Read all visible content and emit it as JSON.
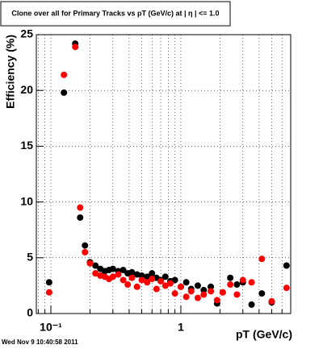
{
  "chart_data": {
    "type": "scatter",
    "title": "Clone  over all for Primary Tracks vs pT (GeV/c) at |  η | <= 1.0",
    "x_label": "pT (GeV/c)",
    "y_label": "Efficiency (%)",
    "footer": "Wed Nov  9 10:40:58 2011",
    "x": [
      0.097,
      0.126,
      0.154,
      0.168,
      0.183,
      0.2,
      0.22,
      0.24,
      0.26,
      0.28,
      0.3,
      0.33,
      0.36,
      0.39,
      0.42,
      0.46,
      0.5,
      0.55,
      0.6,
      0.65,
      0.7,
      0.76,
      0.83,
      0.9,
      1.0,
      1.1,
      1.2,
      1.35,
      1.5,
      1.7,
      1.9,
      2.1,
      2.4,
      2.7,
      3.0,
      3.5,
      4.2,
      5.0,
      6.5
    ],
    "series": [
      {
        "name": "black",
        "color": "#000000",
        "values": [
          2.8,
          19.8,
          24.2,
          8.6,
          6.1,
          4.6,
          4.3,
          4.0,
          3.8,
          3.9,
          4.0,
          3.8,
          3.9,
          3.6,
          3.7,
          3.5,
          3.4,
          3.3,
          3.6,
          3.2,
          3.0,
          3.3,
          2.9,
          3.0,
          2.4,
          2.8,
          2.2,
          2.5,
          2.1,
          2.4,
          0.9,
          1.9,
          3.2,
          2.6,
          2.8,
          0.8,
          1.8,
          1.0,
          4.3
        ]
      },
      {
        "name": "red",
        "color": "#ff0000",
        "values": [
          1.9,
          21.4,
          23.9,
          9.5,
          5.5,
          4.5,
          3.6,
          3.4,
          3.3,
          3.1,
          3.3,
          3.5,
          3.0,
          2.6,
          3.2,
          2.4,
          3.0,
          2.8,
          3.1,
          2.2,
          2.9,
          2.5,
          2.7,
          1.8,
          2.4,
          1.5,
          2.0,
          1.4,
          1.7,
          2.0,
          1.2,
          1.9,
          2.6,
          1.7,
          3.0,
          2.8,
          4.9,
          1.1,
          2.3
        ]
      }
    ],
    "xlog": true,
    "xlim": [
      0.0773,
      7.0
    ],
    "ylim": [
      0,
      25
    ],
    "xticks": [
      {
        "value": 0.1,
        "label": "10⁻¹"
      },
      1
    ],
    "xminorticks": [
      0.08,
      0.09,
      0.2,
      0.3,
      0.4,
      0.5,
      0.6,
      0.7,
      0.8,
      0.9,
      2,
      3,
      4,
      5,
      6,
      7
    ],
    "yticks": [
      0,
      5,
      10,
      15,
      20,
      25
    ],
    "grid": true
  }
}
